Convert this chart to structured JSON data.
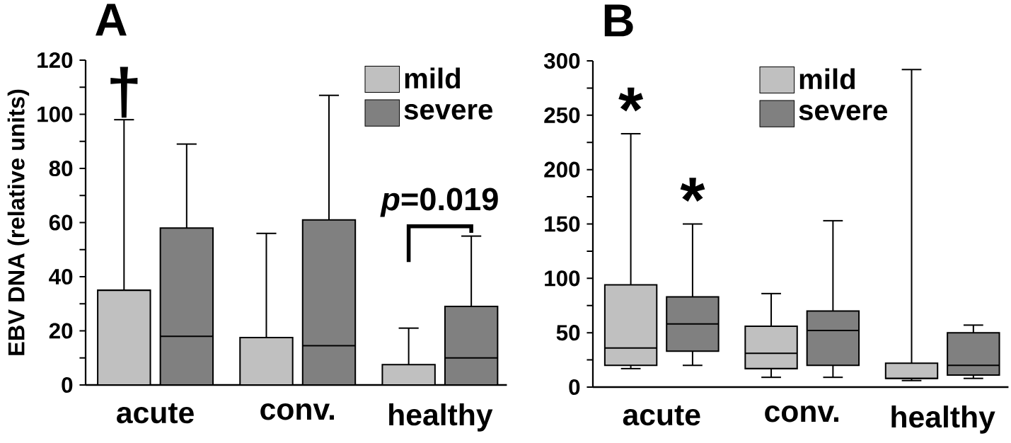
{
  "chart_data": [
    {
      "type": "box",
      "title": "A",
      "ylabel": "EBV DNA (relative units)",
      "categories": [
        "acute",
        "conv.",
        "healthy"
      ],
      "ylim": [
        0,
        120
      ],
      "yticks": [
        0,
        {
          "value": 10,
          "label": null
        },
        20,
        {
          "value": 30,
          "label": null
        },
        40,
        {
          "value": 50,
          "label": null
        },
        60,
        {
          "value": 70,
          "label": null
        },
        80,
        {
          "value": 90,
          "label": null
        },
        100,
        {
          "value": 110,
          "label": null
        },
        120
      ],
      "legend": "top right",
      "grid": false,
      "series": [
        {
          "name": "mild",
          "color": "#c0c0c0",
          "boxes": [
            {
              "low": 0,
              "q1": 0,
              "median": 0,
              "q3": 35,
              "high": 98
            },
            {
              "low": 0,
              "q1": 0,
              "median": 0,
              "q3": 17.5,
              "high": 56
            },
            {
              "low": 0,
              "q1": 0,
              "median": 0,
              "q3": 7.5,
              "high": 21
            }
          ]
        },
        {
          "name": "severe",
          "color": "#808080",
          "boxes": [
            {
              "low": 0,
              "q1": 0,
              "median": 18,
              "q3": 58,
              "high": 89
            },
            {
              "low": 0,
              "q1": 0,
              "median": 14.5,
              "q3": 61,
              "high": 107
            },
            {
              "low": 0,
              "q1": 0,
              "median": 10,
              "q3": 29,
              "high": 55
            }
          ]
        }
      ],
      "annotations": [
        "†",
        "*p*=0.019"
      ]
    },
    {
      "type": "box",
      "title": "B",
      "categories": [
        "acute",
        "conv.",
        "healthy"
      ],
      "ylim": [
        0,
        300
      ],
      "yticks": [
        0,
        {
          "value": 25,
          "label": null
        },
        50,
        {
          "value": 75,
          "label": null
        },
        100,
        {
          "value": 125,
          "label": null
        },
        150,
        {
          "value": 175,
          "label": null
        },
        200,
        {
          "value": 225,
          "label": null
        },
        250,
        {
          "value": 275,
          "label": null
        },
        300
      ],
      "legend": "top",
      "grid": false,
      "series": [
        {
          "name": "mild",
          "color": "#c0c0c0",
          "boxes": [
            {
              "low": 17,
              "q1": 20,
              "median": 36,
              "q3": 94,
              "high": 233
            },
            {
              "low": 9,
              "q1": 17,
              "median": 31,
              "q3": 56,
              "high": 86
            },
            {
              "low": 6,
              "q1": 8,
              "median": 8,
              "q3": 22,
              "high": 292
            }
          ]
        },
        {
          "name": "severe",
          "color": "#808080",
          "boxes": [
            {
              "low": 20,
              "q1": 33,
              "median": 58,
              "q3": 83,
              "high": 150
            },
            {
              "low": 9,
              "q1": 20,
              "median": 52,
              "q3": 70,
              "high": 153
            },
            {
              "low": 8,
              "q1": 11,
              "median": 20,
              "q3": 50,
              "high": 57
            }
          ]
        }
      ],
      "annotations": [
        "*",
        "*"
      ]
    }
  ]
}
